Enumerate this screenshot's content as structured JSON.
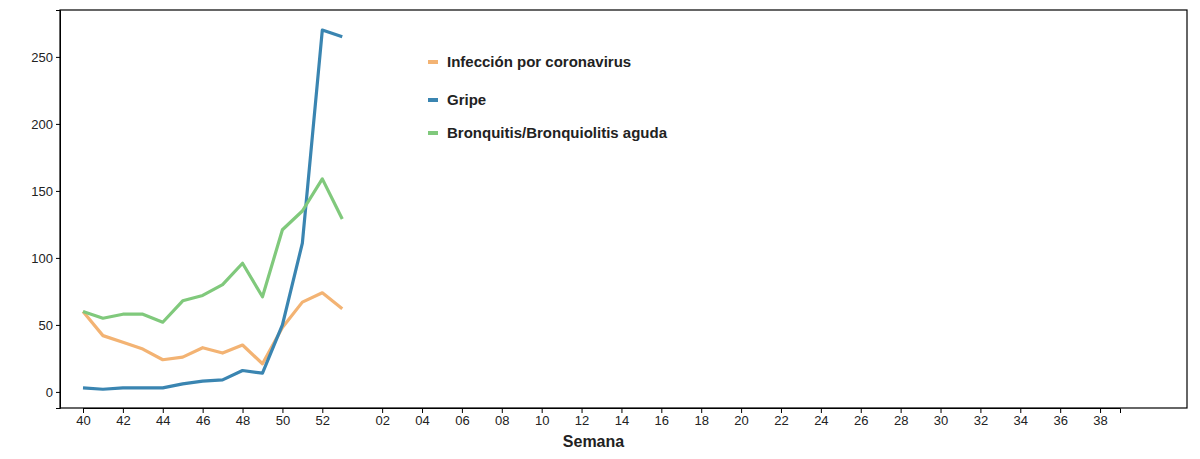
{
  "chart_data": {
    "type": "line",
    "x_label": "Semana",
    "categories": [
      "40",
      null,
      "42",
      null,
      "44",
      null,
      "46",
      null,
      "48",
      null,
      "50",
      null,
      "52",
      null,
      null,
      "02",
      null,
      "04",
      null,
      "06",
      null,
      "08",
      null,
      "10",
      null,
      "12",
      null,
      "14",
      null,
      "16",
      null,
      "18",
      null,
      "20",
      null,
      "22",
      null,
      "24",
      null,
      "26",
      null,
      "28",
      null,
      "30",
      null,
      "32",
      null,
      "34",
      null,
      "36",
      null,
      "38",
      null
    ],
    "series": [
      {
        "name": "Infección por coronavirus",
        "color": "#f3b373",
        "values": [
          60,
          42,
          37,
          32,
          24,
          26,
          33,
          29,
          35,
          21,
          48,
          67,
          74,
          62,
          null,
          null,
          null,
          null,
          null,
          null,
          null,
          null,
          null,
          null,
          null,
          null,
          null,
          null,
          null,
          null,
          null,
          null,
          null,
          null,
          null,
          null,
          null,
          null,
          null,
          null,
          null,
          null,
          null,
          null,
          null,
          null,
          null,
          null,
          null,
          null,
          null,
          null,
          null
        ]
      },
      {
        "name": "Gripe",
        "color": "#3a85b1",
        "values": [
          3,
          2,
          3,
          3,
          3,
          6,
          8,
          9,
          16,
          14,
          50,
          111,
          270,
          265,
          null,
          null,
          null,
          null,
          null,
          null,
          null,
          null,
          null,
          null,
          null,
          null,
          null,
          null,
          null,
          null,
          null,
          null,
          null,
          null,
          null,
          null,
          null,
          null,
          null,
          null,
          null,
          null,
          null,
          null,
          null,
          null,
          null,
          null,
          null,
          null,
          null,
          null,
          null
        ]
      },
      {
        "name": "Bronquitis/Bronquiolitis aguda",
        "color": "#80c97c",
        "values": [
          60,
          55,
          58,
          58,
          52,
          68,
          72,
          80,
          96,
          71,
          121,
          135,
          159,
          129,
          null,
          null,
          null,
          null,
          null,
          null,
          null,
          null,
          null,
          null,
          null,
          null,
          null,
          null,
          null,
          null,
          null,
          null,
          null,
          null,
          null,
          null,
          null,
          null,
          null,
          null,
          null,
          null,
          null,
          null,
          null,
          null,
          null,
          null,
          null,
          null,
          null,
          null,
          null
        ]
      }
    ],
    "ylim": [
      -12,
      285
    ],
    "yticks": [
      0,
      50,
      100,
      150,
      200,
      250
    ],
    "grid": false,
    "legend": "top"
  }
}
